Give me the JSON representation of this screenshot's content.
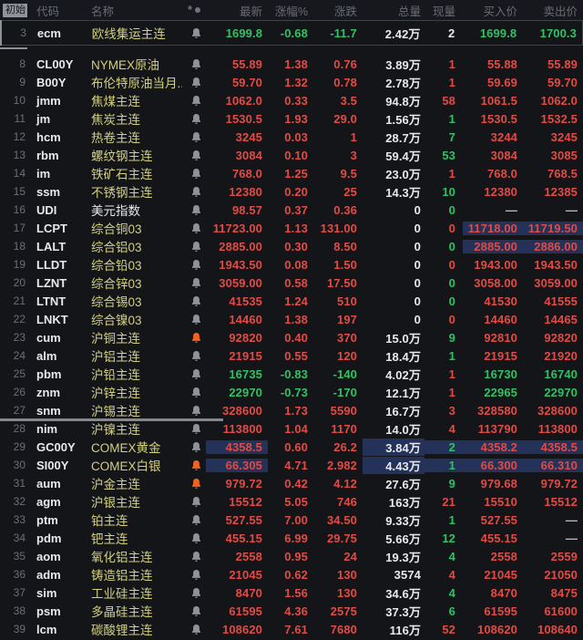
{
  "app": {
    "name": "futures-quote-list"
  },
  "colors": {
    "background": "#141519",
    "up_red": "#e14b45",
    "down_green": "#33c065",
    "neutral_white": "#e7e9ec",
    "dash_gray": "#b9bcc2",
    "name_yellow": "#d3d07e",
    "name_white": "#e7e9ec",
    "bell_gray": "#8f9299",
    "bell_orange": "#f26322",
    "highlight_blue": "#243159",
    "header_gray": "#686d74"
  },
  "header": {
    "initial_chip": "初始",
    "code": "代码",
    "name": "名称",
    "icons": [
      "snowflake-icon",
      "dot-icon"
    ],
    "columns": [
      "最新",
      "涨幅%",
      "涨跌",
      "总量",
      "现量",
      "买入价",
      "卖出价"
    ]
  },
  "rows": [
    {
      "num": "3",
      "code": "ecm",
      "name": "欧线集运主连",
      "nameColor": "yellow",
      "bell": "gray",
      "cells": [
        "1699.8",
        "-0.68",
        "-11.7",
        "2.42万",
        "2",
        "1699.8",
        "1700.3"
      ],
      "c": [
        "d",
        "d",
        "d",
        "w",
        "w",
        "d",
        "d"
      ],
      "hl": [
        0,
        0,
        0,
        0,
        0,
        0,
        0
      ],
      "selected": true
    },
    {
      "num": "8",
      "code": "CL00Y",
      "name": "NYMEX原油",
      "nameColor": "yellow",
      "bell": "gray",
      "cells": [
        "55.89",
        "1.38",
        "0.76",
        "3.89万",
        "1",
        "55.88",
        "55.89"
      ],
      "c": [
        "u",
        "u",
        "u",
        "w",
        "u",
        "u",
        "u"
      ],
      "hl": [
        0,
        0,
        0,
        0,
        0,
        0,
        0
      ]
    },
    {
      "num": "9",
      "code": "B00Y",
      "name": "布伦特原油当月...",
      "nameColor": "yellow",
      "bell": "gray",
      "cells": [
        "59.70",
        "1.32",
        "0.78",
        "2.78万",
        "1",
        "59.69",
        "59.70"
      ],
      "c": [
        "u",
        "u",
        "u",
        "w",
        "u",
        "u",
        "u"
      ],
      "hl": [
        0,
        0,
        0,
        0,
        0,
        0,
        0
      ]
    },
    {
      "num": "10",
      "code": "jmm",
      "name": "焦煤主连",
      "nameColor": "yellow",
      "bell": "gray",
      "cells": [
        "1062.0",
        "0.33",
        "3.5",
        "94.8万",
        "58",
        "1061.5",
        "1062.0"
      ],
      "c": [
        "u",
        "u",
        "u",
        "w",
        "u",
        "u",
        "u"
      ],
      "hl": [
        0,
        0,
        0,
        0,
        0,
        0,
        0
      ]
    },
    {
      "num": "11",
      "code": "jm",
      "name": "焦炭主连",
      "nameColor": "yellow",
      "bell": "gray",
      "cells": [
        "1530.5",
        "1.93",
        "29.0",
        "1.56万",
        "1",
        "1530.5",
        "1532.5"
      ],
      "c": [
        "u",
        "u",
        "u",
        "w",
        "d",
        "u",
        "u"
      ],
      "hl": [
        0,
        0,
        0,
        0,
        0,
        0,
        0
      ]
    },
    {
      "num": "12",
      "code": "hcm",
      "name": "热卷主连",
      "nameColor": "yellow",
      "bell": "gray",
      "cells": [
        "3245",
        "0.03",
        "1",
        "28.7万",
        "7",
        "3244",
        "3245"
      ],
      "c": [
        "u",
        "u",
        "u",
        "w",
        "d",
        "u",
        "u"
      ],
      "hl": [
        0,
        0,
        0,
        0,
        0,
        0,
        0
      ]
    },
    {
      "num": "13",
      "code": "rbm",
      "name": "螺纹钢主连",
      "nameColor": "yellow",
      "bell": "gray",
      "cells": [
        "3084",
        "0.10",
        "3",
        "59.4万",
        "53",
        "3084",
        "3085"
      ],
      "c": [
        "u",
        "u",
        "u",
        "w",
        "d",
        "u",
        "u"
      ],
      "hl": [
        0,
        0,
        0,
        0,
        0,
        0,
        0
      ]
    },
    {
      "num": "14",
      "code": "im",
      "name": "铁矿石主连",
      "nameColor": "yellow",
      "bell": "gray",
      "cells": [
        "768.0",
        "1.25",
        "9.5",
        "23.0万",
        "1",
        "768.0",
        "768.5"
      ],
      "c": [
        "u",
        "u",
        "u",
        "w",
        "u",
        "u",
        "u"
      ],
      "hl": [
        0,
        0,
        0,
        0,
        0,
        0,
        0
      ]
    },
    {
      "num": "15",
      "code": "ssm",
      "name": "不锈钢主连",
      "nameColor": "yellow",
      "bell": "gray",
      "cells": [
        "12380",
        "0.20",
        "25",
        "14.3万",
        "10",
        "12380",
        "12385"
      ],
      "c": [
        "u",
        "u",
        "u",
        "w",
        "d",
        "u",
        "u"
      ],
      "hl": [
        0,
        0,
        0,
        0,
        0,
        0,
        0
      ]
    },
    {
      "num": "16",
      "code": "UDI",
      "name": "美元指数",
      "nameColor": "white",
      "bell": "gray",
      "cells": [
        "98.57",
        "0.37",
        "0.36",
        "0",
        "0",
        "—",
        "—"
      ],
      "c": [
        "u",
        "u",
        "u",
        "w",
        "d",
        "g",
        "g"
      ],
      "hl": [
        0,
        0,
        0,
        0,
        0,
        0,
        0
      ]
    },
    {
      "num": "17",
      "code": "LCPT",
      "name": "综合铜03",
      "nameColor": "yellow",
      "bell": "gray",
      "cells": [
        "11723.00",
        "1.13",
        "131.00",
        "0",
        "0",
        "11718.00",
        "11719.50"
      ],
      "c": [
        "u",
        "u",
        "u",
        "w",
        "u",
        "u",
        "u"
      ],
      "hl": [
        0,
        0,
        0,
        0,
        0,
        1,
        1
      ]
    },
    {
      "num": "18",
      "code": "LALT",
      "name": "综合铝03",
      "nameColor": "yellow",
      "bell": "gray",
      "cells": [
        "2885.00",
        "0.30",
        "8.50",
        "0",
        "0",
        "2885.00",
        "2886.00"
      ],
      "c": [
        "u",
        "u",
        "u",
        "w",
        "d",
        "u",
        "u"
      ],
      "hl": [
        0,
        0,
        0,
        0,
        0,
        1,
        1
      ]
    },
    {
      "num": "19",
      "code": "LLDT",
      "name": "综合铅03",
      "nameColor": "yellow",
      "bell": "gray",
      "cells": [
        "1943.50",
        "0.08",
        "1.50",
        "0",
        "0",
        "1943.00",
        "1943.50"
      ],
      "c": [
        "u",
        "u",
        "u",
        "w",
        "u",
        "u",
        "u"
      ],
      "hl": [
        0,
        0,
        0,
        0,
        0,
        0,
        0
      ]
    },
    {
      "num": "20",
      "code": "LZNT",
      "name": "综合锌03",
      "nameColor": "yellow",
      "bell": "gray",
      "cells": [
        "3059.00",
        "0.58",
        "17.50",
        "0",
        "0",
        "3058.00",
        "3059.00"
      ],
      "c": [
        "u",
        "u",
        "u",
        "w",
        "d",
        "u",
        "u"
      ],
      "hl": [
        0,
        0,
        0,
        0,
        0,
        0,
        0
      ]
    },
    {
      "num": "21",
      "code": "LTNT",
      "name": "综合锡03",
      "nameColor": "yellow",
      "bell": "gray",
      "cells": [
        "41535",
        "1.24",
        "510",
        "0",
        "0",
        "41530",
        "41555"
      ],
      "c": [
        "u",
        "u",
        "u",
        "w",
        "d",
        "u",
        "u"
      ],
      "hl": [
        0,
        0,
        0,
        0,
        0,
        0,
        0
      ]
    },
    {
      "num": "22",
      "code": "LNKT",
      "name": "综合镍03",
      "nameColor": "yellow",
      "bell": "gray",
      "cells": [
        "14460",
        "1.38",
        "197",
        "0",
        "0",
        "14460",
        "14465"
      ],
      "c": [
        "u",
        "u",
        "u",
        "w",
        "u",
        "u",
        "u"
      ],
      "hl": [
        0,
        0,
        0,
        0,
        0,
        0,
        0
      ]
    },
    {
      "num": "23",
      "code": "cum",
      "name": "沪铜主连",
      "nameColor": "yellow",
      "bell": "orange",
      "cells": [
        "92820",
        "0.40",
        "370",
        "15.0万",
        "9",
        "92810",
        "92820"
      ],
      "c": [
        "u",
        "u",
        "u",
        "w",
        "d",
        "u",
        "u"
      ],
      "hl": [
        0,
        0,
        0,
        0,
        0,
        0,
        0
      ]
    },
    {
      "num": "24",
      "code": "alm",
      "name": "沪铝主连",
      "nameColor": "yellow",
      "bell": "gray",
      "cells": [
        "21915",
        "0.55",
        "120",
        "18.4万",
        "1",
        "21915",
        "21920"
      ],
      "c": [
        "u",
        "u",
        "u",
        "w",
        "d",
        "u",
        "u"
      ],
      "hl": [
        0,
        0,
        0,
        0,
        0,
        0,
        0
      ]
    },
    {
      "num": "25",
      "code": "pbm",
      "name": "沪铅主连",
      "nameColor": "yellow",
      "bell": "gray",
      "cells": [
        "16735",
        "-0.83",
        "-140",
        "4.02万",
        "1",
        "16730",
        "16740"
      ],
      "c": [
        "d",
        "d",
        "d",
        "w",
        "u",
        "d",
        "d"
      ],
      "hl": [
        0,
        0,
        0,
        0,
        0,
        0,
        0
      ]
    },
    {
      "num": "26",
      "code": "znm",
      "name": "沪锌主连",
      "nameColor": "yellow",
      "bell": "gray",
      "cells": [
        "22970",
        "-0.73",
        "-170",
        "12.1万",
        "1",
        "22965",
        "22970"
      ],
      "c": [
        "d",
        "d",
        "d",
        "w",
        "u",
        "d",
        "d"
      ],
      "hl": [
        0,
        0,
        0,
        0,
        0,
        0,
        0
      ]
    },
    {
      "num": "27",
      "code": "snm",
      "name": "沪锡主连",
      "nameColor": "yellow",
      "bell": "gray",
      "cells": [
        "328600",
        "1.73",
        "5590",
        "16.7万",
        "3",
        "328580",
        "328600"
      ],
      "c": [
        "u",
        "u",
        "u",
        "w",
        "u",
        "u",
        "u"
      ],
      "hl": [
        0,
        0,
        0,
        0,
        0,
        0,
        0
      ],
      "dividerBelow": true
    },
    {
      "num": "28",
      "code": "nim",
      "name": "沪镍主连",
      "nameColor": "yellow",
      "bell": "gray",
      "cells": [
        "113800",
        "1.04",
        "1170",
        "14.0万",
        "4",
        "113790",
        "113800"
      ],
      "c": [
        "u",
        "u",
        "u",
        "w",
        "u",
        "u",
        "u"
      ],
      "hl": [
        0,
        0,
        0,
        0,
        0,
        0,
        0
      ]
    },
    {
      "num": "29",
      "code": "GC00Y",
      "name": "COMEX黄金",
      "nameColor": "yellow",
      "bell": "gray",
      "cells": [
        "4358.5",
        "0.60",
        "26.2",
        "3.84万",
        "2",
        "4358.2",
        "4358.5"
      ],
      "c": [
        "u",
        "u",
        "u",
        "w",
        "d",
        "u",
        "u"
      ],
      "hl": [
        1,
        0,
        0,
        1,
        1,
        1,
        1
      ]
    },
    {
      "num": "30",
      "code": "SI00Y",
      "name": "COMEX白银",
      "nameColor": "yellow",
      "bell": "orange",
      "cells": [
        "66.305",
        "4.71",
        "2.982",
        "4.43万",
        "1",
        "66.300",
        "66.310"
      ],
      "c": [
        "u",
        "u",
        "u",
        "w",
        "d",
        "u",
        "u"
      ],
      "hl": [
        1,
        0,
        0,
        1,
        1,
        1,
        1
      ]
    },
    {
      "num": "31",
      "code": "aum",
      "name": "沪金主连",
      "nameColor": "yellow",
      "bell": "orange",
      "cells": [
        "979.72",
        "0.42",
        "4.12",
        "27.6万",
        "9",
        "979.68",
        "979.72"
      ],
      "c": [
        "u",
        "u",
        "u",
        "w",
        "d",
        "u",
        "u"
      ],
      "hl": [
        0,
        0,
        0,
        0,
        0,
        0,
        0
      ]
    },
    {
      "num": "32",
      "code": "agm",
      "name": "沪银主连",
      "nameColor": "yellow",
      "bell": "gray",
      "cells": [
        "15512",
        "5.05",
        "746",
        "163万",
        "21",
        "15510",
        "15512"
      ],
      "c": [
        "u",
        "u",
        "u",
        "w",
        "u",
        "u",
        "u"
      ],
      "hl": [
        0,
        0,
        0,
        0,
        0,
        0,
        0
      ]
    },
    {
      "num": "33",
      "code": "ptm",
      "name": "铂主连",
      "nameColor": "yellow",
      "bell": "gray",
      "cells": [
        "527.55",
        "7.00",
        "34.50",
        "9.33万",
        "1",
        "527.55",
        "—"
      ],
      "c": [
        "u",
        "u",
        "u",
        "w",
        "d",
        "u",
        "g"
      ],
      "hl": [
        0,
        0,
        0,
        0,
        0,
        0,
        0
      ]
    },
    {
      "num": "34",
      "code": "pdm",
      "name": "钯主连",
      "nameColor": "yellow",
      "bell": "gray",
      "cells": [
        "455.15",
        "6.99",
        "29.75",
        "5.66万",
        "12",
        "455.15",
        "—"
      ],
      "c": [
        "u",
        "u",
        "u",
        "w",
        "d",
        "u",
        "g"
      ],
      "hl": [
        0,
        0,
        0,
        0,
        0,
        0,
        0
      ]
    },
    {
      "num": "35",
      "code": "aom",
      "name": "氧化铝主连",
      "nameColor": "yellow",
      "bell": "gray",
      "cells": [
        "2558",
        "0.95",
        "24",
        "19.3万",
        "4",
        "2558",
        "2559"
      ],
      "c": [
        "u",
        "u",
        "u",
        "w",
        "d",
        "u",
        "u"
      ],
      "hl": [
        0,
        0,
        0,
        0,
        0,
        0,
        0
      ]
    },
    {
      "num": "36",
      "code": "adm",
      "name": "铸造铝主连",
      "nameColor": "yellow",
      "bell": "gray",
      "cells": [
        "21045",
        "0.62",
        "130",
        "3574",
        "4",
        "21045",
        "21050"
      ],
      "c": [
        "u",
        "u",
        "u",
        "w",
        "u",
        "u",
        "u"
      ],
      "hl": [
        0,
        0,
        0,
        0,
        0,
        0,
        0
      ]
    },
    {
      "num": "37",
      "code": "sim",
      "name": "工业硅主连",
      "nameColor": "yellow",
      "bell": "gray",
      "cells": [
        "8470",
        "1.56",
        "130",
        "34.6万",
        "4",
        "8470",
        "8475"
      ],
      "c": [
        "u",
        "u",
        "u",
        "w",
        "d",
        "u",
        "u"
      ],
      "hl": [
        0,
        0,
        0,
        0,
        0,
        0,
        0
      ]
    },
    {
      "num": "38",
      "code": "psm",
      "name": "多晶硅主连",
      "nameColor": "yellow",
      "bell": "gray",
      "cells": [
        "61595",
        "4.36",
        "2575",
        "37.3万",
        "6",
        "61595",
        "61600"
      ],
      "c": [
        "u",
        "u",
        "u",
        "w",
        "d",
        "u",
        "u"
      ],
      "hl": [
        0,
        0,
        0,
        0,
        0,
        0,
        0
      ]
    },
    {
      "num": "39",
      "code": "lcm",
      "name": "碳酸锂主连",
      "nameColor": "yellow",
      "bell": "gray",
      "cells": [
        "108620",
        "7.61",
        "7680",
        "116万",
        "52",
        "108620",
        "108640"
      ],
      "c": [
        "u",
        "u",
        "u",
        "w",
        "u",
        "u",
        "u"
      ],
      "hl": [
        0,
        0,
        0,
        0,
        0,
        0,
        0
      ]
    }
  ]
}
